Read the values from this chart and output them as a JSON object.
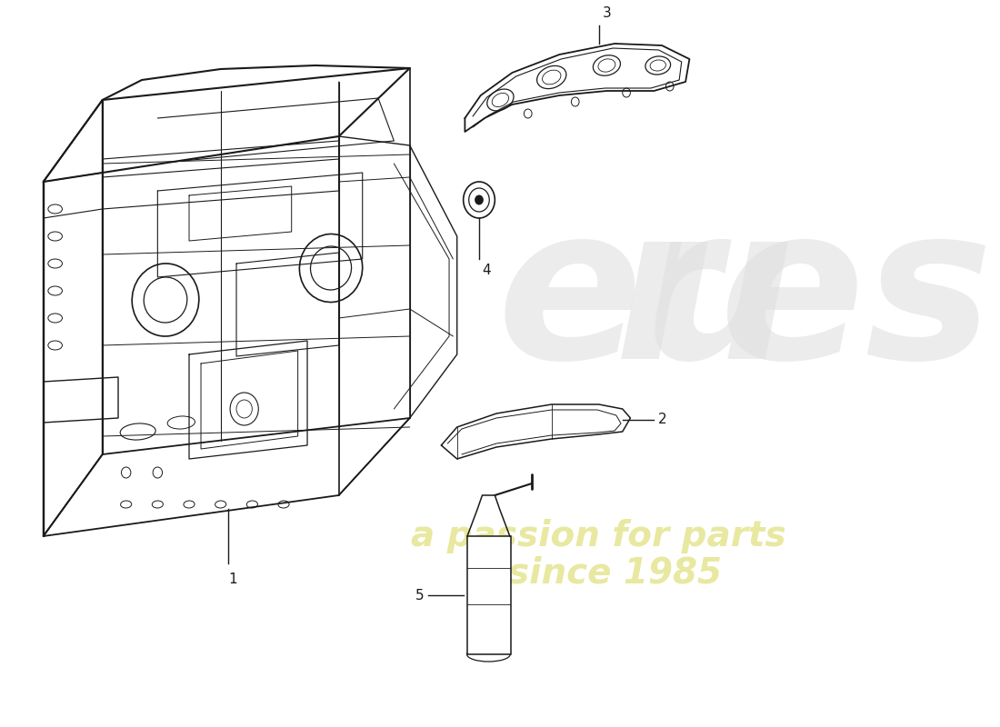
{
  "background_color": "#ffffff",
  "line_color": "#1a1a1a",
  "line_width": 1.0,
  "watermark_color": "#e0e0e0",
  "watermark_sub_color": "#e8e8a0",
  "label_color": "#1a1a1a",
  "label_fontsize": 11,
  "parts": {
    "label1": "1",
    "label2": "2",
    "label3": "3",
    "label4": "4",
    "label5": "5"
  }
}
